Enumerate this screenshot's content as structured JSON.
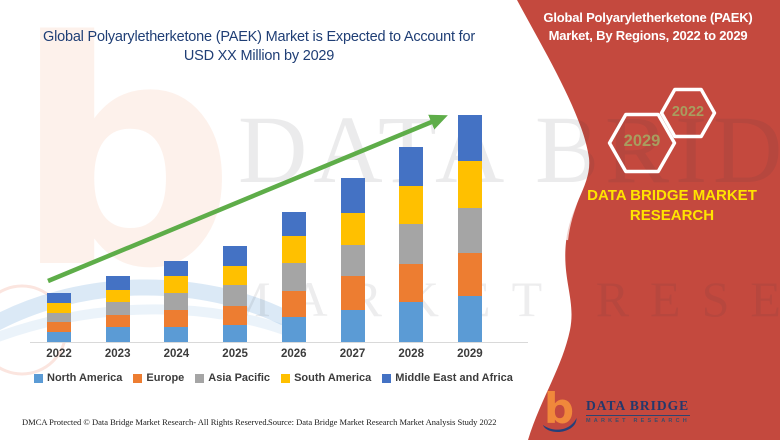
{
  "page": {
    "background": "#FFFFFF",
    "accent_red": "#C4493E"
  },
  "header": {
    "title_line1": "Global Polyaryletherketone (PAEK) Market is Expected to Account for",
    "title_line2": "USD XX Million by 2029",
    "title_color": "#1F3E75"
  },
  "banner": {
    "title_line1": "Global Polyaryletherketone (PAEK)",
    "title_line2": "Market, By Regions, 2022 to 2029",
    "hexagons": [
      {
        "label": "2022"
      },
      {
        "label": "2029"
      }
    ],
    "hex_label_color": "#A89D5F",
    "brand_line1": "DATA BRIDGE MARKET",
    "brand_line2": "RESEARCH",
    "brand_color": "#FFE400"
  },
  "chart_data": {
    "type": "bar",
    "stacked": true,
    "title": "Global Polyaryletherketone (PAEK) Market is Expected to Account for USD XX Million by 2029",
    "categories": [
      "2022",
      "2023",
      "2024",
      "2025",
      "2026",
      "2027",
      "2028",
      "2029"
    ],
    "series": [
      {
        "name": "North America",
        "color": "#5B9BD5",
        "values": [
          10,
          15,
          15,
          17,
          25,
          32,
          40,
          46
        ]
      },
      {
        "name": "Europe",
        "color": "#ED7D31",
        "values": [
          10,
          12,
          17,
          19,
          26,
          34,
          38,
          43
        ]
      },
      {
        "name": "Asia Pacific",
        "color": "#A5A5A5",
        "values": [
          9,
          13,
          17,
          21,
          28,
          31,
          40,
          45
        ]
      },
      {
        "name": "South America",
        "color": "#FFC000",
        "values": [
          10,
          12,
          17,
          19,
          27,
          32,
          38,
          47
        ]
      },
      {
        "name": "Middle East and Africa",
        "color": "#4472C4",
        "values": [
          10,
          14,
          15,
          20,
          24,
          35,
          39,
          46
        ]
      }
    ],
    "totals": [
      49,
      66,
      81,
      96,
      130,
      164,
      195,
      227
    ],
    "value_labels": "none shown — market size depicted as USD XX Million (relative units)",
    "trend_arrow": {
      "color": "#5EAD49",
      "direction": "increasing",
      "from_category": "2022",
      "to_category": "2029"
    },
    "legend_position": "bottom",
    "gridlines": false,
    "y_axis_visible": false
  },
  "footer": {
    "dmca": "DMCA Protected © Data Bridge Market Research- All Rights Reserved.",
    "source": "Source: Data Bridge Market Research Market Analysis Study 2022"
  },
  "logo": {
    "name": "DATA BRIDGE",
    "subtitle": "MARKET RESEARCH"
  },
  "watermark": {
    "letter": "b",
    "line1": "DATA BRIDGE",
    "line2": "MARKET RESEARCH"
  }
}
